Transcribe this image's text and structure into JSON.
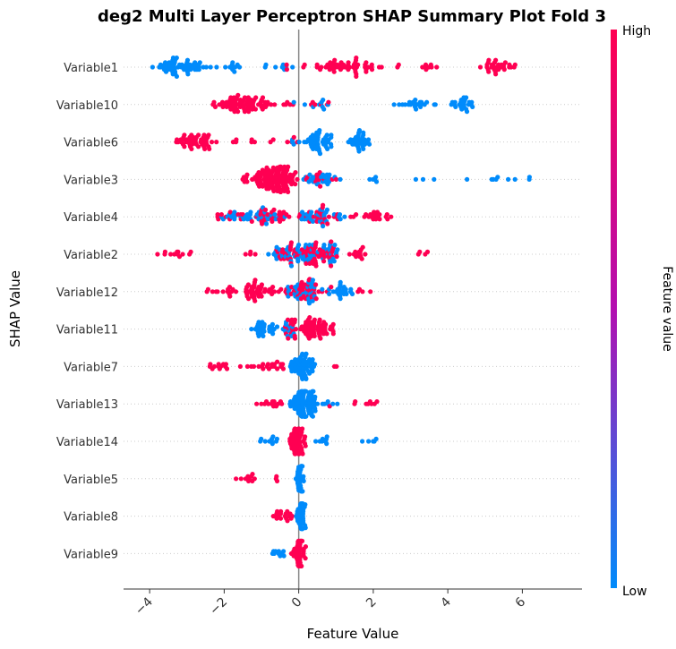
{
  "chart_data": {
    "type": "scatter",
    "title": "deg2 Multi Layer Perceptron SHAP Summary Plot Fold 3",
    "xlabel": "Feature Value",
    "ylabel": "SHAP Value",
    "xlim": [
      -4.7,
      7.6
    ],
    "xticks": [
      "−4",
      "−2",
      "0",
      "2",
      "4",
      "6"
    ],
    "xtick_values": [
      -4,
      -2,
      0,
      2,
      4,
      6
    ],
    "colorbar": {
      "label": "Feature value",
      "high": "High",
      "low": "Low",
      "high_color": "#ff0052",
      "low_color": "#008bfb"
    },
    "features": [
      {
        "name": "Variable1",
        "segments": [
          {
            "lo": -4.1,
            "hi": -2.1,
            "mode": -3.4,
            "n": 60,
            "color": "low"
          },
          {
            "lo": -2.0,
            "hi": -1.4,
            "mode": -1.7,
            "n": 10,
            "color": "low"
          },
          {
            "lo": -1.0,
            "hi": 0.0,
            "mode": -0.3,
            "n": 10,
            "color": "mix"
          },
          {
            "lo": 0.0,
            "hi": 2.8,
            "mode": 1.0,
            "n": 55,
            "color": "high"
          },
          {
            "lo": 3.0,
            "hi": 3.8,
            "mode": 3.4,
            "n": 8,
            "color": "high"
          },
          {
            "lo": 4.8,
            "hi": 5.9,
            "mode": 5.4,
            "n": 30,
            "color": "high"
          }
        ]
      },
      {
        "name": "Variable10",
        "segments": [
          {
            "lo": -2.5,
            "hi": -0.5,
            "mode": -1.7,
            "n": 75,
            "color": "high"
          },
          {
            "lo": -0.5,
            "hi": 0.0,
            "mode": -0.2,
            "n": 6,
            "color": "mix"
          },
          {
            "lo": 0.0,
            "hi": 1.2,
            "mode": 0.5,
            "n": 14,
            "color": "mix"
          },
          {
            "lo": 2.5,
            "hi": 3.8,
            "mode": 3.1,
            "n": 22,
            "color": "low"
          },
          {
            "lo": 4.0,
            "hi": 4.7,
            "mode": 4.4,
            "n": 24,
            "color": "low"
          }
        ]
      },
      {
        "name": "Variable6",
        "segments": [
          {
            "lo": -3.4,
            "hi": -2.1,
            "mode": -2.6,
            "n": 48,
            "color": "high"
          },
          {
            "lo": -2.0,
            "hi": -0.4,
            "mode": -1.2,
            "n": 8,
            "color": "high"
          },
          {
            "lo": -0.4,
            "hi": 0.1,
            "mode": -0.1,
            "n": 8,
            "color": "mix"
          },
          {
            "lo": 0.1,
            "hi": 1.0,
            "mode": 0.5,
            "n": 45,
            "color": "low"
          },
          {
            "lo": 1.3,
            "hi": 2.0,
            "mode": 1.6,
            "n": 32,
            "color": "low"
          }
        ]
      },
      {
        "name": "Variable3",
        "segments": [
          {
            "lo": -1.6,
            "hi": 0.0,
            "mode": -0.5,
            "n": 120,
            "color": "high"
          },
          {
            "lo": 0.0,
            "hi": 1.3,
            "mode": 0.5,
            "n": 38,
            "color": "mix"
          },
          {
            "lo": 1.7,
            "hi": 2.2,
            "mode": 1.9,
            "n": 5,
            "color": "low"
          },
          {
            "lo": 3.0,
            "hi": 7.0,
            "mode": 5.5,
            "n": 12,
            "color": "low"
          }
        ]
      },
      {
        "name": "Variable4",
        "segments": [
          {
            "lo": -2.4,
            "hi": -0.1,
            "mode": -0.6,
            "n": 75,
            "color": "mix"
          },
          {
            "lo": -0.1,
            "hi": 1.3,
            "mode": 0.5,
            "n": 55,
            "color": "mix"
          },
          {
            "lo": 1.3,
            "hi": 2.8,
            "mode": 2.0,
            "n": 22,
            "color": "high"
          }
        ]
      },
      {
        "name": "Variable2",
        "segments": [
          {
            "lo": -4.1,
            "hi": -2.7,
            "mode": -3.2,
            "n": 12,
            "color": "high"
          },
          {
            "lo": -2.0,
            "hi": -0.9,
            "mode": -1.2,
            "n": 4,
            "color": "high"
          },
          {
            "lo": -0.9,
            "hi": 1.3,
            "mode": 0.3,
            "n": 130,
            "color": "mix"
          },
          {
            "lo": 1.3,
            "hi": 2.2,
            "mode": 1.6,
            "n": 14,
            "color": "high"
          },
          {
            "lo": 3.0,
            "hi": 3.8,
            "mode": 3.4,
            "n": 4,
            "color": "high"
          }
        ]
      },
      {
        "name": "Variable12",
        "segments": [
          {
            "lo": -2.6,
            "hi": -1.6,
            "mode": -2.0,
            "n": 14,
            "color": "high"
          },
          {
            "lo": -1.6,
            "hi": -0.6,
            "mode": -1.2,
            "n": 42,
            "color": "high"
          },
          {
            "lo": -0.6,
            "hi": 0.9,
            "mode": 0.0,
            "n": 75,
            "color": "mix"
          },
          {
            "lo": 0.9,
            "hi": 1.5,
            "mode": 1.1,
            "n": 22,
            "color": "low"
          },
          {
            "lo": 1.5,
            "hi": 2.2,
            "mode": 1.6,
            "n": 4,
            "color": "high"
          }
        ]
      },
      {
        "name": "Variable11",
        "segments": [
          {
            "lo": -1.3,
            "hi": -0.5,
            "mode": -0.9,
            "n": 30,
            "color": "low"
          },
          {
            "lo": -0.5,
            "hi": 0.0,
            "mode": -0.2,
            "n": 28,
            "color": "mix"
          },
          {
            "lo": 0.0,
            "hi": 1.1,
            "mode": 0.3,
            "n": 60,
            "color": "high"
          }
        ]
      },
      {
        "name": "Variable7",
        "segments": [
          {
            "lo": -2.4,
            "hi": -1.8,
            "mode": -2.1,
            "n": 12,
            "color": "high"
          },
          {
            "lo": -1.8,
            "hi": -0.3,
            "mode": -0.6,
            "n": 22,
            "color": "high"
          },
          {
            "lo": -0.3,
            "hi": 0.5,
            "mode": 0.1,
            "n": 60,
            "color": "low"
          },
          {
            "lo": 0.9,
            "hi": 1.1,
            "mode": 1.0,
            "n": 2,
            "color": "high"
          }
        ]
      },
      {
        "name": "Variable13",
        "segments": [
          {
            "lo": -1.4,
            "hi": -0.3,
            "mode": -0.5,
            "n": 14,
            "color": "high"
          },
          {
            "lo": -0.3,
            "hi": 0.6,
            "mode": 0.1,
            "n": 90,
            "color": "low"
          },
          {
            "lo": 0.6,
            "hi": 1.1,
            "mode": 0.8,
            "n": 7,
            "color": "mix"
          },
          {
            "lo": 1.4,
            "hi": 2.2,
            "mode": 2.1,
            "n": 8,
            "color": "high"
          }
        ]
      },
      {
        "name": "Variable14",
        "segments": [
          {
            "lo": -1.3,
            "hi": -0.3,
            "mode": -0.6,
            "n": 10,
            "color": "low"
          },
          {
            "lo": -0.3,
            "hi": 0.2,
            "mode": 0.0,
            "n": 55,
            "color": "high"
          },
          {
            "lo": 0.2,
            "hi": 1.2,
            "mode": 0.6,
            "n": 8,
            "color": "low"
          },
          {
            "lo": 1.5,
            "hi": 2.2,
            "mode": 2.0,
            "n": 5,
            "color": "low"
          }
        ]
      },
      {
        "name": "Variable5",
        "segments": [
          {
            "lo": -1.7,
            "hi": -1.1,
            "mode": -1.4,
            "n": 10,
            "color": "high"
          },
          {
            "lo": -0.7,
            "hi": -0.5,
            "mode": -0.6,
            "n": 3,
            "color": "high"
          },
          {
            "lo": -0.1,
            "hi": 0.2,
            "mode": 0.05,
            "n": 35,
            "color": "low"
          }
        ]
      },
      {
        "name": "Variable8",
        "segments": [
          {
            "lo": -0.8,
            "hi": 0.0,
            "mode": -0.3,
            "n": 18,
            "color": "high"
          },
          {
            "lo": -0.1,
            "hi": 0.2,
            "mode": 0.05,
            "n": 40,
            "color": "low"
          }
        ]
      },
      {
        "name": "Variable9",
        "segments": [
          {
            "lo": -0.8,
            "hi": -0.2,
            "mode": -0.5,
            "n": 10,
            "color": "low"
          },
          {
            "lo": -0.2,
            "hi": 0.2,
            "mode": 0.0,
            "n": 45,
            "color": "high"
          }
        ]
      }
    ]
  }
}
